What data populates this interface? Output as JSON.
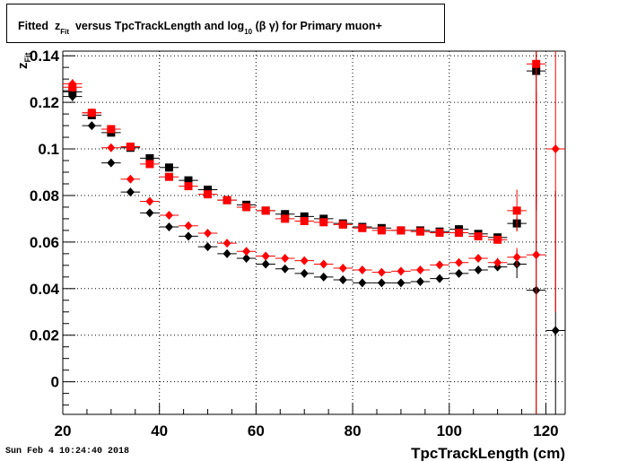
{
  "title": {
    "prefix": "Fitted  z",
    "prefix_sub": "Fit",
    "middle": "  versus TpcTrackLength and log",
    "middle_sub": "10",
    "suffix": " (β γ) for Primary muon+"
  },
  "footer_text": "Sun Feb  4 10:24:40 2018",
  "chart_data": {
    "type": "scatter",
    "xlabel": "TpcTrackLength (cm)",
    "ylabel": "z",
    "ylabel_sub": "Fit",
    "xlim": [
      20,
      124
    ],
    "ylim": [
      -0.014,
      0.142
    ],
    "xticks": [
      20,
      40,
      60,
      80,
      100,
      120
    ],
    "yticks": [
      0,
      0.02,
      0.04,
      0.06,
      0.08,
      0.1,
      0.12,
      0.14
    ],
    "yticklabels": [
      "0",
      "0.02",
      "0.04",
      "0.06",
      "0.08",
      "0.1",
      "0.12",
      "0.14"
    ],
    "grid": true,
    "series": [
      {
        "marker": "square",
        "color": "#000000",
        "x": [
          22,
          26,
          30,
          34,
          38,
          42,
          46,
          50,
          54,
          58,
          62,
          66,
          70,
          74,
          78,
          82,
          86,
          90,
          94,
          98,
          102,
          106,
          110,
          114,
          118
        ],
        "y": [
          0.1245,
          0.1145,
          0.107,
          0.1005,
          0.096,
          0.092,
          0.0865,
          0.0825,
          0.078,
          0.076,
          0.0735,
          0.072,
          0.071,
          0.07,
          0.068,
          0.0665,
          0.066,
          0.065,
          0.065,
          0.0645,
          0.0655,
          0.0635,
          0.062,
          0.068,
          0.1335
        ],
        "yerr": [
          0.002,
          0.001,
          0.001,
          0.001,
          0.001,
          0.001,
          0.001,
          0.001,
          0.001,
          0.001,
          0.001,
          0.001,
          0.001,
          0.001,
          0.001,
          0.001,
          0.001,
          0.001,
          0.001,
          0.001,
          0.001,
          0.001,
          0.001,
          0.003,
          0.06
        ],
        "xerr": 2
      },
      {
        "marker": "square",
        "color": "#ff0000",
        "x": [
          22,
          26,
          30,
          34,
          38,
          42,
          46,
          50,
          54,
          58,
          62,
          66,
          70,
          74,
          78,
          82,
          86,
          90,
          94,
          98,
          102,
          106,
          110,
          114,
          118
        ],
        "y": [
          0.1265,
          0.1155,
          0.1085,
          0.101,
          0.0935,
          0.088,
          0.084,
          0.0805,
          0.078,
          0.075,
          0.0735,
          0.07,
          0.069,
          0.0685,
          0.0675,
          0.066,
          0.065,
          0.065,
          0.0645,
          0.064,
          0.064,
          0.0625,
          0.061,
          0.0735,
          0.1365
        ],
        "yerr": [
          0.002,
          0.001,
          0.001,
          0.001,
          0.001,
          0.001,
          0.001,
          0.001,
          0.001,
          0.001,
          0.001,
          0.001,
          0.001,
          0.001,
          0.001,
          0.001,
          0.001,
          0.001,
          0.001,
          0.001,
          0.001,
          0.001,
          0.001,
          0.009,
          0.06
        ],
        "xerr": 2
      },
      {
        "marker": "diamond",
        "color": "#000000",
        "x": [
          22,
          26,
          30,
          34,
          38,
          42,
          46,
          50,
          54,
          58,
          62,
          66,
          70,
          74,
          78,
          82,
          86,
          90,
          94,
          98,
          102,
          106,
          110,
          114,
          118,
          122
        ],
        "y": [
          0.1225,
          0.11,
          0.094,
          0.0815,
          0.0725,
          0.0665,
          0.0625,
          0.058,
          0.055,
          0.053,
          0.0505,
          0.0485,
          0.0465,
          0.045,
          0.0438,
          0.0425,
          0.0425,
          0.0425,
          0.043,
          0.0443,
          0.0465,
          0.048,
          0.0493,
          0.0505,
          0.0393,
          0.022
        ],
        "yerr": [
          0.002,
          0.001,
          0.001,
          0.001,
          0.001,
          0.001,
          0.001,
          0.001,
          0.001,
          0.001,
          0.001,
          0.001,
          0.001,
          0.001,
          0.001,
          0.001,
          0.001,
          0.001,
          0.001,
          0.001,
          0.001,
          0.001,
          0.001,
          0.006,
          0.06,
          0.06
        ],
        "xerr": 2
      },
      {
        "marker": "diamond",
        "color": "#ff0000",
        "x": [
          22,
          26,
          30,
          34,
          38,
          42,
          46,
          50,
          54,
          58,
          62,
          66,
          70,
          74,
          78,
          82,
          86,
          90,
          94,
          98,
          102,
          106,
          110,
          114,
          118,
          122
        ],
        "y": [
          0.128,
          0.1155,
          0.1005,
          0.087,
          0.0775,
          0.0715,
          0.067,
          0.0638,
          0.0595,
          0.056,
          0.054,
          0.053,
          0.052,
          0.0505,
          0.0488,
          0.048,
          0.047,
          0.0475,
          0.048,
          0.0502,
          0.0512,
          0.053,
          0.0512,
          0.0535,
          0.0545,
          0.1
        ],
        "yerr": [
          0.002,
          0.001,
          0.001,
          0.001,
          0.001,
          0.001,
          0.001,
          0.001,
          0.001,
          0.001,
          0.001,
          0.001,
          0.001,
          0.001,
          0.001,
          0.001,
          0.001,
          0.001,
          0.001,
          0.001,
          0.001,
          0.001,
          0.002,
          0.004,
          0.07,
          0.07
        ],
        "xerr": 2
      }
    ]
  }
}
